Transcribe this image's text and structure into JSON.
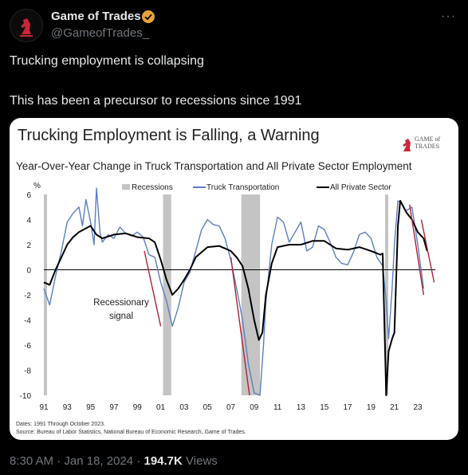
{
  "post": {
    "author_name": "Game of Trades",
    "author_handle": "@GameofTrades_",
    "more_icon": "ellipsis-icon",
    "verified_icon": "verified-badge-icon",
    "text_line1": "Trucking employment is collapsing",
    "text_line2": "This has been a precursor to recessions since 1991",
    "time": "8:30 AM",
    "separator": "·",
    "date": "Jan 18, 2024",
    "views": "194.7K",
    "views_label": "Views"
  },
  "colors": {
    "truck": "#5b7fc2",
    "private": "#000000",
    "recession": "#c4c4c4",
    "signal": "#b0203a",
    "verified": "#e8a33b"
  },
  "chart_data": {
    "type": "line",
    "title": "Trucking Employment is Falling, a Warning",
    "subtitle": "Year-Over-Year Change in Truck Transportation and All Private Sector Employment",
    "ylabel": "%",
    "ylim": [
      -10,
      6
    ],
    "yticks": [
      6,
      4,
      2,
      0,
      -2,
      -4,
      -6,
      -8,
      -10
    ],
    "xlim": [
      1991,
      2024.5
    ],
    "xticks": [
      1991,
      1993,
      1995,
      1997,
      1999,
      2001,
      2003,
      2005,
      2007,
      2009,
      2011,
      2013,
      2015,
      2017,
      2019,
      2021,
      2023
    ],
    "xtick_labels": [
      "91",
      "93",
      "95",
      "97",
      "99",
      "01",
      "03",
      "05",
      "07",
      "09",
      "11",
      "13",
      "15",
      "17",
      "19",
      "21",
      "23"
    ],
    "legend": [
      "Recessions",
      "Truck Transportation",
      "All Private Sector"
    ],
    "annotation": [
      "Recessionary",
      "signal"
    ],
    "logo_text": [
      "GAME of",
      "TRADES"
    ],
    "footnote1": "Dates: 1991 Through October 2023.",
    "footnote2": "Source: Bureau of Labor Statistics, National Bureau of Economic Research, Game of Trades.",
    "recessions": [
      [
        1991.0,
        1991.2
      ],
      [
        2001.2,
        2001.9
      ],
      [
        2007.9,
        2009.5
      ],
      [
        2020.2,
        2020.4
      ]
    ],
    "series": [
      {
        "name": "Truck Transportation",
        "x": [
          1991.0,
          1991.5,
          1992.0,
          1992.5,
          1993.0,
          1993.5,
          1994.0,
          1994.3,
          1994.6,
          1995.0,
          1995.3,
          1995.5,
          1995.8,
          1996.0,
          1996.5,
          1997.0,
          1997.5,
          1998.0,
          1998.5,
          1999.0,
          1999.5,
          2000.0,
          2000.5,
          2001.0,
          2001.5,
          2002.0,
          2002.5,
          2003.0,
          2003.5,
          2004.0,
          2004.5,
          2005.0,
          2005.5,
          2006.0,
          2006.5,
          2007.0,
          2007.5,
          2008.0,
          2008.5,
          2009.0,
          2009.5,
          2009.8,
          2010.0,
          2010.5,
          2011.0,
          2011.5,
          2012.0,
          2012.5,
          2013.0,
          2013.5,
          2014.0,
          2014.5,
          2015.0,
          2015.5,
          2016.0,
          2016.5,
          2017.0,
          2017.5,
          2018.0,
          2018.5,
          2019.0,
          2019.5,
          2020.0,
          2020.3,
          2020.5,
          2020.8,
          2021.0,
          2021.3,
          2021.6,
          2022.0,
          2022.5,
          2023.0,
          2023.5
        ],
        "y": [
          -1.5,
          -2.8,
          -0.5,
          1.5,
          3.8,
          4.5,
          5.0,
          3.5,
          5.6,
          3.8,
          2.0,
          6.5,
          3.0,
          2.2,
          2.8,
          2.5,
          3.4,
          2.9,
          2.7,
          3.0,
          2.6,
          1.2,
          1.0,
          -1.0,
          -2.5,
          -4.5,
          -3.0,
          -1.0,
          -0.2,
          1.5,
          3.2,
          4.0,
          3.6,
          3.5,
          2.5,
          0.8,
          -1.5,
          -4.0,
          -7.5,
          -9.8,
          -10.0,
          -6.0,
          -2.5,
          2.0,
          4.2,
          3.8,
          2.2,
          3.0,
          3.8,
          1.5,
          1.8,
          3.5,
          3.2,
          2.2,
          1.0,
          0.5,
          0.4,
          1.4,
          2.8,
          3.0,
          2.5,
          1.0,
          0.3,
          -2.5,
          -5.5,
          -1.5,
          2.0,
          5.5,
          5.3,
          4.7,
          5.0,
          2.0,
          -1.5
        ]
      },
      {
        "name": "All Private Sector",
        "x": [
          1991.0,
          1991.5,
          1992.0,
          1992.5,
          1993.0,
          1993.5,
          1994.0,
          1995.0,
          1995.5,
          1996.0,
          1997.0,
          1998.0,
          1999.0,
          2000.0,
          2000.5,
          2001.0,
          2001.5,
          2002.0,
          2002.5,
          2003.0,
          2003.5,
          2004.0,
          2005.0,
          2006.0,
          2007.0,
          2007.5,
          2008.0,
          2008.5,
          2009.0,
          2009.4,
          2009.7,
          2010.0,
          2010.5,
          2011.0,
          2012.0,
          2013.0,
          2014.0,
          2015.0,
          2016.0,
          2017.0,
          2018.0,
          2019.0,
          2019.8,
          2020.0,
          2020.3,
          2020.5,
          2020.8,
          2021.0,
          2021.3,
          2021.5,
          2022.0,
          2022.5,
          2023.0,
          2023.5,
          2023.8
        ],
        "y": [
          -1.0,
          -1.2,
          0.0,
          1.0,
          2.0,
          2.6,
          3.0,
          3.5,
          2.8,
          2.5,
          2.8,
          2.9,
          2.6,
          2.5,
          2.2,
          0.8,
          -0.8,
          -2.0,
          -1.5,
          -0.8,
          0.0,
          1.0,
          1.8,
          1.9,
          1.5,
          1.0,
          0.3,
          -1.5,
          -4.0,
          -5.6,
          -5.0,
          -2.0,
          0.5,
          1.8,
          2.0,
          2.0,
          2.3,
          2.3,
          1.7,
          1.6,
          1.8,
          1.5,
          1.2,
          1.3,
          -10.0,
          -6.5,
          -5.5,
          -5.0,
          3.5,
          5.5,
          4.6,
          4.0,
          3.0,
          2.5,
          1.5
        ]
      }
    ],
    "signals": [
      {
        "x": [
          1999.6,
          2001.0
        ],
        "y": [
          1.5,
          -4.5
        ]
      },
      {
        "x": [
          2007.0,
          2008.6
        ],
        "y": [
          1.0,
          -10.0
        ]
      },
      {
        "x": [
          2022.3,
          2023.5
        ],
        "y": [
          5.2,
          -2.0
        ]
      },
      {
        "x": [
          2023.3,
          2024.4
        ],
        "y": [
          4.0,
          -1.0
        ]
      }
    ]
  }
}
